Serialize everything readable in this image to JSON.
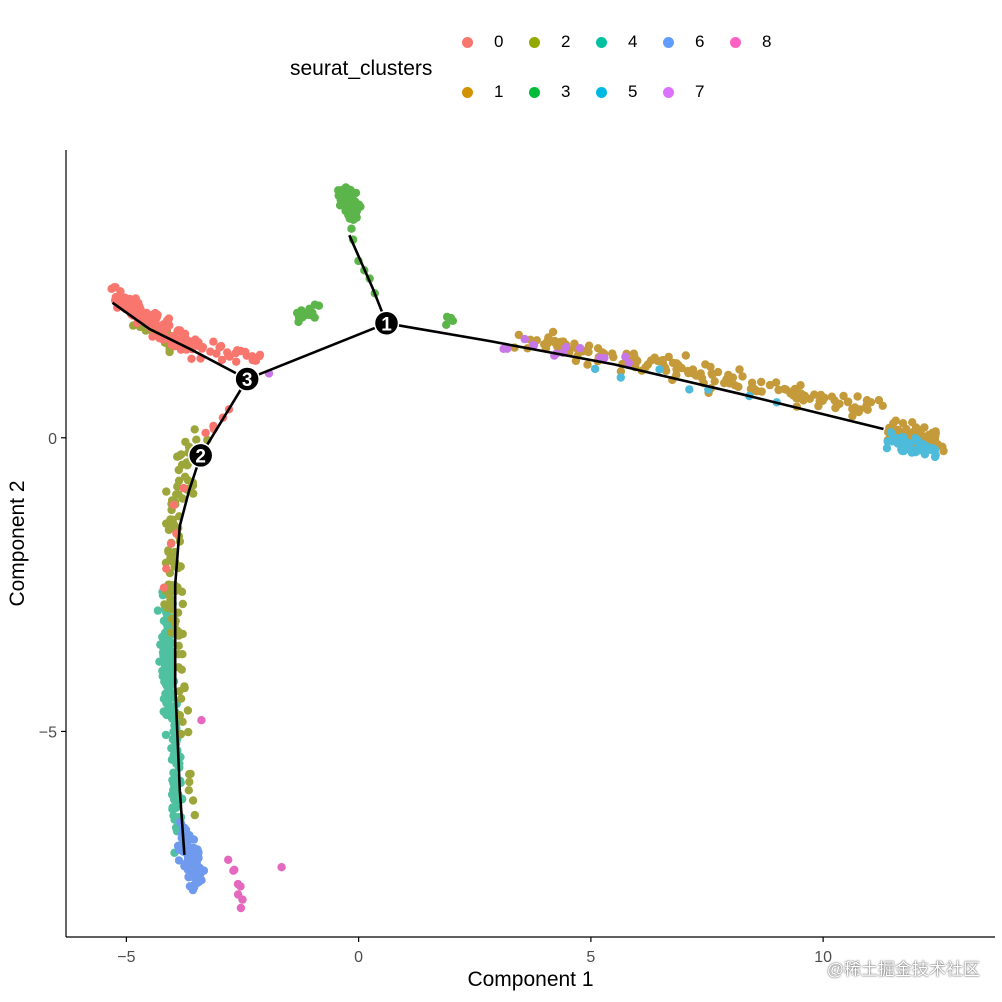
{
  "legend": {
    "title": "seurat_clusters",
    "items": [
      {
        "label": "0",
        "color": "#F8766D"
      },
      {
        "label": "1",
        "color": "#D39200"
      },
      {
        "label": "2",
        "color": "#93AA00"
      },
      {
        "label": "3",
        "color": "#00BA38"
      },
      {
        "label": "4",
        "color": "#00C19F"
      },
      {
        "label": "5",
        "color": "#00B9E3"
      },
      {
        "label": "6",
        "color": "#619CFF"
      },
      {
        "label": "7",
        "color": "#DB72FB"
      },
      {
        "label": "8",
        "color": "#FF61C3"
      }
    ]
  },
  "watermark": "@稀土掘金技术社区",
  "chart_data": {
    "type": "scatter",
    "xlabel": "Component 1",
    "ylabel": "Component 2",
    "xlim": [
      -6.3,
      13.7
    ],
    "ylim": [
      -8.5,
      4.9
    ],
    "xticks": [
      -5,
      0,
      5,
      10
    ],
    "xtick_labels": [
      "−5",
      "0",
      "5",
      "10"
    ],
    "yticks": [
      -5,
      0
    ],
    "ytick_labels": [
      "−5",
      "0"
    ],
    "grid": false,
    "legend_position": "top",
    "point_colors": {
      "0": "#F8766D",
      "1": "#C49A3A",
      "2": "#9CA63A",
      "3": "#5BB54A",
      "4": "#4FC1A0",
      "5": "#4DBBD9",
      "6": "#6F9AEE",
      "7": "#C877E6",
      "8": "#E468BE"
    },
    "trajectory": [
      {
        "branch": "0",
        "points": [
          [
            -5.3,
            2.3
          ],
          [
            -4.5,
            1.85
          ],
          [
            -3.6,
            1.5
          ],
          [
            -2.4,
            1.0
          ]
        ]
      },
      {
        "branch": "3",
        "points": [
          [
            0.6,
            1.95
          ],
          [
            0.3,
            2.55
          ],
          [
            -0.2,
            3.45
          ]
        ]
      },
      {
        "branch": "1",
        "points": [
          [
            0.6,
            1.95
          ],
          [
            2.8,
            1.65
          ],
          [
            5.5,
            1.25
          ],
          [
            8.2,
            0.75
          ],
          [
            11.3,
            0.15
          ]
        ]
      },
      {
        "branch": "core",
        "points": [
          [
            0.6,
            1.95
          ],
          [
            -2.4,
            1.0
          ],
          [
            -3.4,
            -0.3
          ],
          [
            -3.65,
            -0.9
          ],
          [
            -3.85,
            -1.5
          ],
          [
            -3.95,
            -2.5
          ],
          [
            -3.95,
            -4.2
          ],
          [
            -3.85,
            -6.0
          ],
          [
            -3.75,
            -7.1
          ]
        ]
      }
    ],
    "branch_points": [
      {
        "label": "1",
        "x": 0.6,
        "y": 1.95
      },
      {
        "label": "2",
        "x": -3.4,
        "y": -0.3
      },
      {
        "label": "3",
        "x": -2.4,
        "y": 1.0
      }
    ],
    "clusters": [
      {
        "id": "0",
        "segments": [
          {
            "x0": -5.3,
            "y0": 2.4,
            "x1": -3.6,
            "y1": 1.55,
            "n": 110,
            "sx": 0.06,
            "sy": 0.11
          },
          {
            "x0": -3.6,
            "y0": 1.55,
            "x1": -2.1,
            "y1": 1.35,
            "n": 28,
            "sx": 0.08,
            "sy": 0.07
          },
          {
            "x0": -3.3,
            "y0": 0.0,
            "x1": -2.8,
            "y1": 0.45,
            "n": 5,
            "sx": 0.05,
            "sy": 0.07
          },
          {
            "x0": -3.9,
            "y0": -0.9,
            "x1": -4.1,
            "y1": -2.5,
            "n": 6,
            "sx": 0.06,
            "sy": 0.1
          }
        ]
      },
      {
        "id": "1",
        "segments": [
          {
            "x0": 3.6,
            "y0": 1.7,
            "x1": 11.2,
            "y1": 0.45,
            "n": 150,
            "sx": 0.2,
            "sy": 0.09
          },
          {
            "x0": 11.6,
            "y0": 0.15,
            "x1": 12.4,
            "y1": -0.05,
            "n": 70,
            "sx": 0.14,
            "sy": 0.09
          }
        ]
      },
      {
        "id": "2",
        "segments": [
          {
            "x0": -3.5,
            "y0": 0.0,
            "x1": -3.8,
            "y1": -1.0,
            "n": 35,
            "sx": 0.12,
            "sy": 0.12
          },
          {
            "x0": -4.0,
            "y0": -1.0,
            "x1": -4.0,
            "y1": -3.2,
            "n": 55,
            "sx": 0.1,
            "sy": 0.15
          },
          {
            "x0": -3.9,
            "y0": -3.2,
            "x1": -3.75,
            "y1": -5.0,
            "n": 18,
            "sx": 0.05,
            "sy": 0.2
          },
          {
            "x0": -3.7,
            "y0": -5.6,
            "x1": -3.55,
            "y1": -6.3,
            "n": 6,
            "sx": 0.05,
            "sy": 0.1
          },
          {
            "x0": -4.9,
            "y0": 2.0,
            "x1": -3.9,
            "y1": 1.5,
            "n": 20,
            "sx": 0.08,
            "sy": 0.06
          }
        ]
      },
      {
        "id": "3",
        "segments": [
          {
            "x0": -0.35,
            "y0": 4.15,
            "x1": -0.05,
            "y1": 3.85,
            "n": 80,
            "sx": 0.09,
            "sy": 0.1
          },
          {
            "x0": -0.2,
            "y0": 3.5,
            "x1": 0.35,
            "y1": 2.45,
            "n": 6,
            "sx": 0.03,
            "sy": 0.05
          },
          {
            "x0": -1.3,
            "y0": 2.05,
            "x1": -0.95,
            "y1": 2.2,
            "n": 14,
            "sx": 0.06,
            "sy": 0.08
          },
          {
            "x0": 1.85,
            "y0": 1.95,
            "x1": 2.0,
            "y1": 2.1,
            "n": 4,
            "sx": 0.05,
            "sy": 0.05
          }
        ]
      },
      {
        "id": "4",
        "segments": [
          {
            "x0": -4.1,
            "y0": -2.7,
            "x1": -4.15,
            "y1": -4.4,
            "n": 90,
            "sx": 0.08,
            "sy": 0.15
          },
          {
            "x0": -4.0,
            "y0": -4.4,
            "x1": -3.85,
            "y1": -6.9,
            "n": 90,
            "sx": 0.07,
            "sy": 0.12
          }
        ]
      },
      {
        "id": "5",
        "segments": [
          {
            "x0": 11.5,
            "y0": -0.05,
            "x1": 12.4,
            "y1": -0.25,
            "n": 45,
            "sx": 0.14,
            "sy": 0.08
          },
          {
            "x0": 5.1,
            "y0": 1.15,
            "x1": 8.8,
            "y1": 0.6,
            "n": 7,
            "sx": 0.15,
            "sy": 0.08
          }
        ]
      },
      {
        "id": "6",
        "segments": [
          {
            "x0": -3.75,
            "y0": -6.7,
            "x1": -3.45,
            "y1": -7.6,
            "n": 85,
            "sx": 0.09,
            "sy": 0.13
          }
        ]
      },
      {
        "id": "7",
        "segments": [
          {
            "x0": 3.0,
            "y0": 1.6,
            "x1": 5.7,
            "y1": 1.35,
            "n": 14,
            "sx": 0.2,
            "sy": 0.08
          },
          {
            "x0": -1.95,
            "y0": 1.1,
            "x1": -1.95,
            "y1": 1.1,
            "n": 1,
            "sx": 0.01,
            "sy": 0.01
          }
        ]
      },
      {
        "id": "8",
        "segments": [
          {
            "x0": -2.75,
            "y0": -7.15,
            "x1": -2.45,
            "y1": -8.05,
            "n": 8,
            "sx": 0.05,
            "sy": 0.05
          },
          {
            "x0": -1.65,
            "y0": -7.3,
            "x1": -1.65,
            "y1": -7.3,
            "n": 1,
            "sx": 0.01,
            "sy": 0.01
          },
          {
            "x0": -3.4,
            "y0": -4.8,
            "x1": -3.4,
            "y1": -4.8,
            "n": 1,
            "sx": 0.01,
            "sy": 0.01
          }
        ]
      }
    ]
  }
}
